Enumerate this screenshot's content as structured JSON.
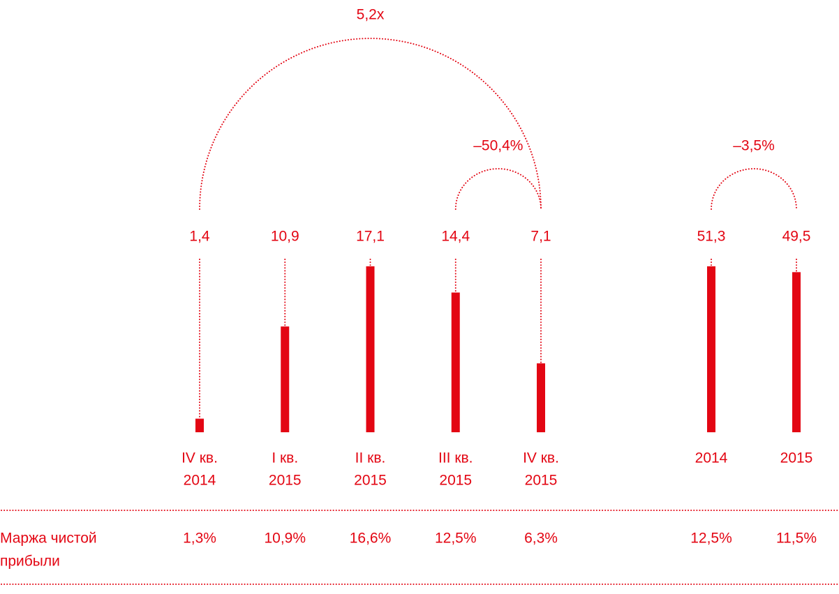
{
  "chart_data": [
    {
      "type": "bar",
      "color": "#e30613",
      "categories": [
        [
          "IV кв.",
          "2014"
        ],
        [
          "I кв.",
          "2015"
        ],
        [
          "II кв.",
          "2015"
        ],
        [
          "III кв.",
          "2015"
        ],
        [
          "IV кв.",
          "2015"
        ]
      ],
      "values": [
        1.4,
        10.9,
        17.1,
        14.4,
        7.1
      ],
      "value_labels": [
        "1,4",
        "10,9",
        "17,1",
        "14,4",
        "7,1"
      ],
      "annotations": [
        "5,2x",
        "–50,4%"
      ],
      "margin_labels": [
        "1,3%",
        "10,9%",
        "16,6%",
        "12,5%",
        "6,3%"
      ]
    },
    {
      "type": "bar",
      "color": "#e30613",
      "categories": [
        [
          "2014"
        ],
        [
          "2015"
        ]
      ],
      "values": [
        51.3,
        49.5
      ],
      "value_labels": [
        "51,3",
        "49,5"
      ],
      "annotations": [
        "–3,5%"
      ],
      "margin_labels": [
        "12,5%",
        "11,5%"
      ]
    }
  ],
  "margin_title": [
    "Маржа чистой",
    "прибыли"
  ]
}
